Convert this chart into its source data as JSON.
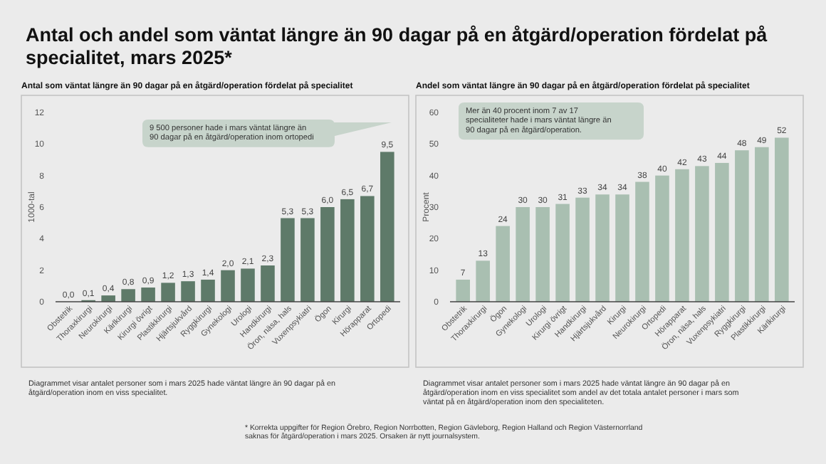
{
  "chart_data": [
    {
      "type": "bar",
      "title": "Antal och andel som väntat längre än 90 dagar på en åtgärd/operation fördelat på specialitet, mars 2025*",
      "subtitle": "Antal som väntat längre än 90 dagar på en åtgärd/operation fördelat på specialitet",
      "ylabel": "1000-tal",
      "categories": [
        "Obstetrik",
        "Thoraxkirurgi",
        "Neurokirurgi",
        "Kärlkirurgi",
        "Kirurgi övrigt",
        "Plastikkirurgi",
        "Hjärtsjukvård",
        "Ryggkirurgi",
        "Gynekologi",
        "Urologi",
        "Handkirurgi",
        "Öron, näsa, hals",
        "Vuxenpsykiatri",
        "Ögon",
        "Kirurgi",
        "Hörapparat",
        "Ortopedi"
      ],
      "values": [
        0.0,
        0.1,
        0.4,
        0.8,
        0.9,
        1.2,
        1.3,
        1.4,
        2.0,
        2.1,
        2.3,
        5.3,
        5.3,
        6.0,
        6.5,
        6.7,
        9.5
      ],
      "value_labels": [
        "0,0",
        "0,1",
        "0,4",
        "0,8",
        "0,9",
        "1,2",
        "1,3",
        "1,4",
        "2,0",
        "2,1",
        "2,3",
        "5,3",
        "5,3",
        "6,0",
        "6,5",
        "6,7",
        "9,5"
      ],
      "color": "#5e7a69",
      "ylim": [
        0,
        12
      ],
      "yticks": [
        0,
        2,
        4,
        6,
        8,
        10,
        12
      ],
      "grid": false,
      "annotations": [
        "9 500 personer hade i mars väntat längre än 90 dagar på en åtgärd/operation inom ortopedi",
        "Diagrammet visar antalet personer som i mars 2025 hade väntat längre än 90 dagar på en åtgärd/operation inom en viss specialitet."
      ]
    },
    {
      "type": "bar",
      "title": "Andel som väntat längre än 90 dagar på en åtgärd/operation fördelat på specialitet",
      "ylabel": "Procent",
      "categories": [
        "Obstetrik",
        "Thoraxkirurgi",
        "Ögon",
        "Gynekologi",
        "Urologi",
        "Kirurgi övrigt",
        "Handkirurgi",
        "Hjärtsjukvård",
        "Kirurgi",
        "Neurokirurgi",
        "Ortopedi",
        "Hörapparat",
        "Öron, näsa, hals",
        "Vuxenpsykiatri",
        "Ryggkirurgi",
        "Plastikkirurgi",
        "Kärlkirurgi"
      ],
      "values": [
        7,
        13,
        24,
        30,
        30,
        31,
        33,
        34,
        34,
        38,
        40,
        42,
        43,
        44,
        48,
        49,
        52
      ],
      "data_labels": true,
      "color": "#a9bfb1",
      "ylim": [
        0,
        60
      ],
      "yticks": [
        0,
        10,
        20,
        30,
        40,
        50,
        60
      ],
      "grid": false,
      "annotations": [
        "Mer än 40 procent inom 7 av 17 specialiteter hade i mars väntat längre än 90 dagar på en åtgärd/operation.",
        "Diagrammet visar antalet personer som i mars 2025 hade väntat längre än 90 dagar på en åtgärd/operation inom en viss specialitet som andel av det totala antalet personer i mars som väntat på en åtgärd/operation inom den specialiteten.",
        "* Korrekta uppgifter för Region Örebro, Region Norrbotten, Region Gävleborg, Region Halland och Region Västernorrland saknas för åtgärd/operation i mars 2025. Orsaken är nytt journalsystem."
      ]
    }
  ]
}
